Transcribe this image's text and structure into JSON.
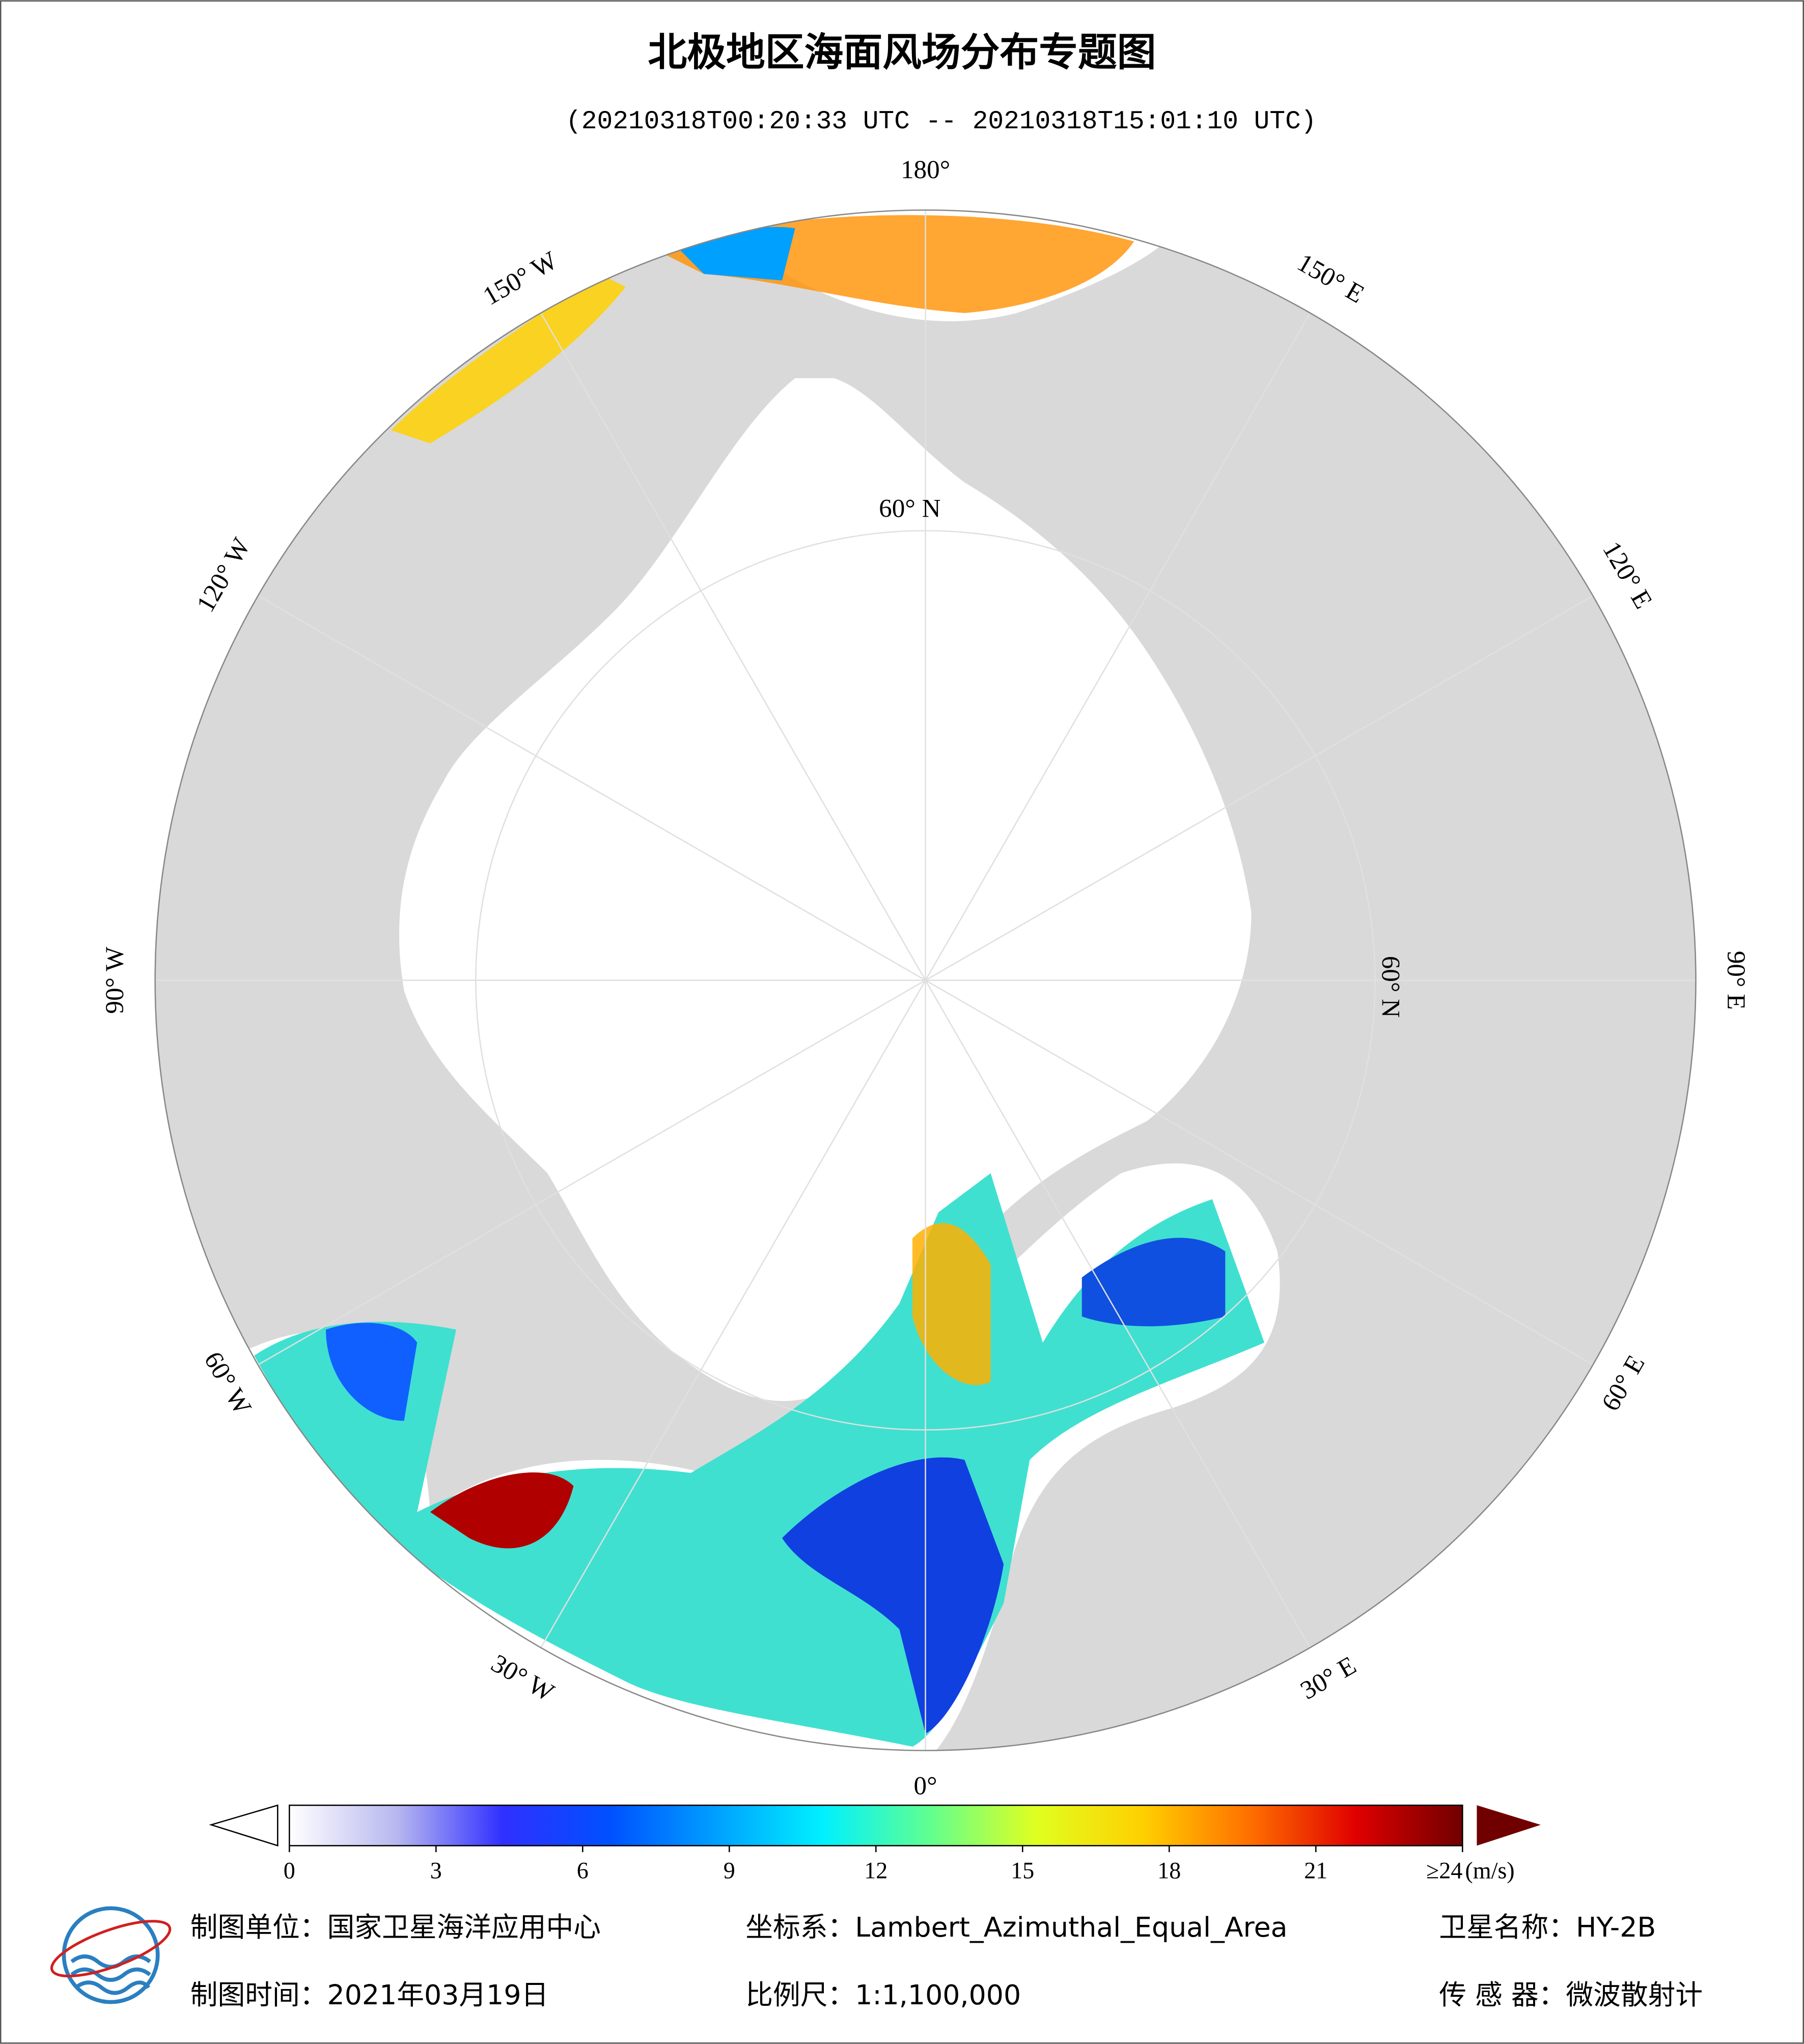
{
  "header": {
    "title": "北极地区海面风场分布专题图",
    "subtitle": "(20210318T00:20:33 UTC -- 20210318T15:01:10 UTC)"
  },
  "map": {
    "lon_labels": [
      "180°",
      "150° E",
      "120° E",
      "90° E",
      "60° E",
      "30° E",
      "0°",
      "30° W",
      "60° W",
      "90° W",
      "120° W",
      "150° W"
    ],
    "lat_labels": [
      "60° N",
      "60° N"
    ]
  },
  "colorbar": {
    "range": [
      0,
      24
    ],
    "unit": "(m/s)",
    "ticks": [
      0,
      3,
      6,
      9,
      12,
      15,
      18,
      21,
      {
        "value": 24,
        "label": "≥24"
      }
    ],
    "colors": [
      "#ffffff",
      "#b8b8f0",
      "#3030ff",
      "#0050ff",
      "#00a0ff",
      "#00f0ff",
      "#60ff90",
      "#e0ff20",
      "#ffd000",
      "#ff7000",
      "#e00000",
      "#700000"
    ]
  },
  "footer": {
    "items": [
      "制图单位：国家卫星海洋应用中心",
      "坐标系：Lambert_Azimuthal_Equal_Area",
      "卫星名称：HY-2B",
      "制图时间：2021年03月19日",
      "比例尺：1:1,100,000",
      "传 感 器：微波散射计"
    ]
  }
}
